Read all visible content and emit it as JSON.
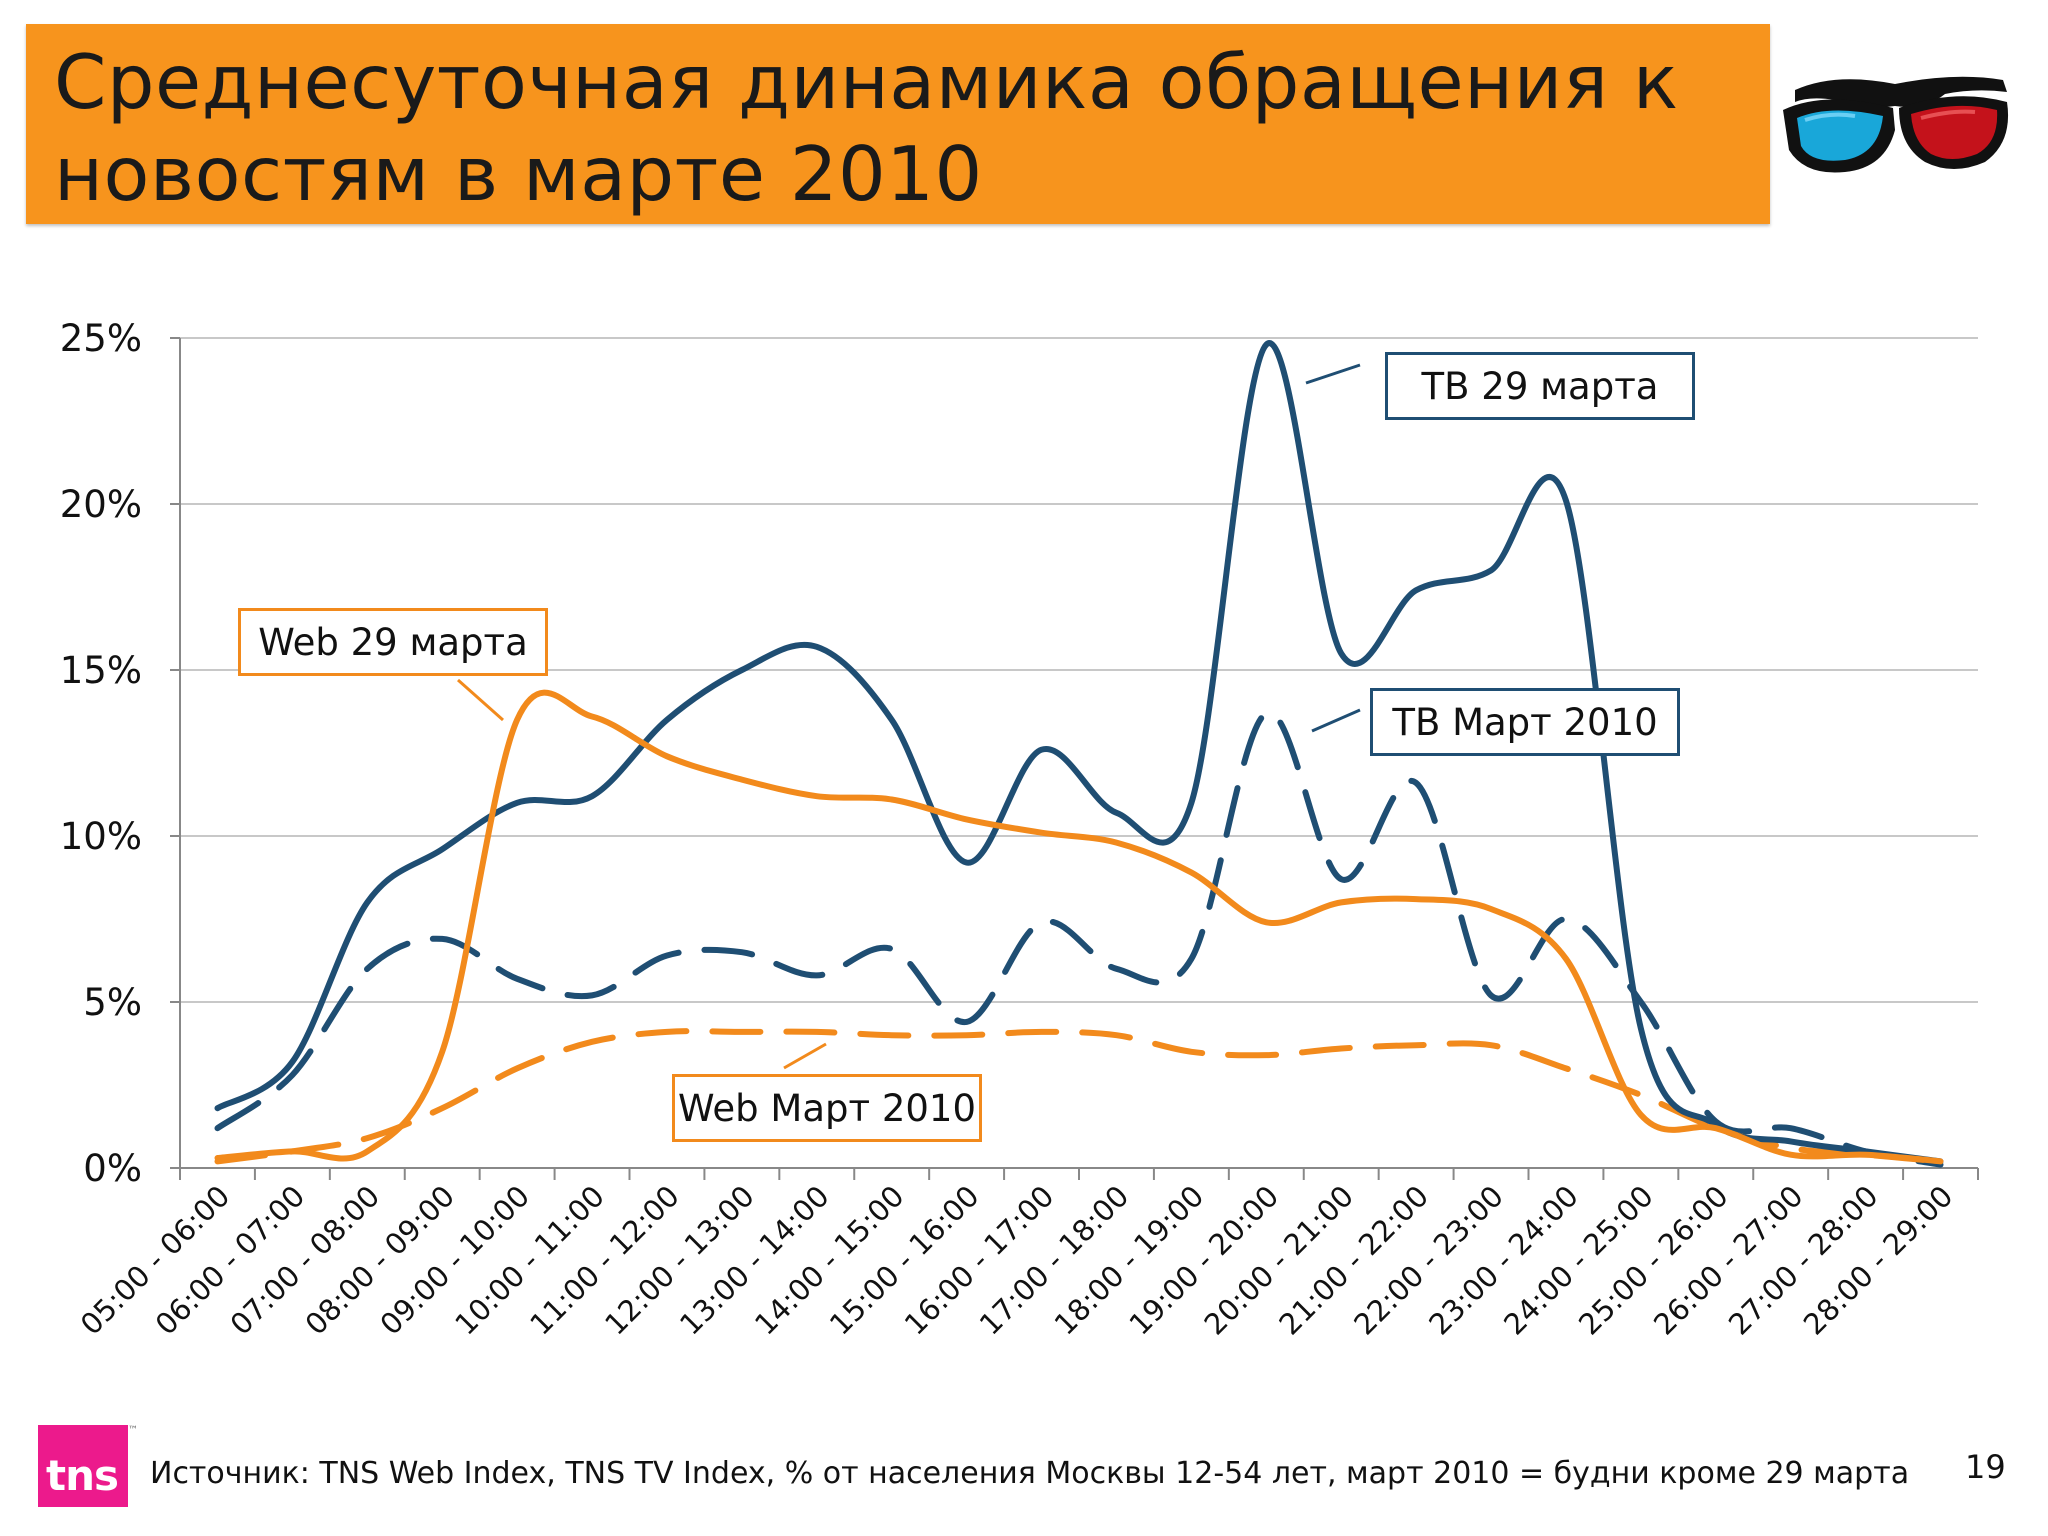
{
  "header": {
    "title": "Среднесуточная динамика обращения к новостям в марте 2010"
  },
  "footer": {
    "logo_text": "tns",
    "trademark": "™",
    "source": "Источник: TNS Web Index, TNS TV Index, % от населения Москвы 12-54 лет, март 2010 = будни кроме 29 марта",
    "page_number": "19"
  },
  "colors": {
    "title_bar": "#f7941d",
    "tv": "#1f4e73",
    "web": "#f28a1c",
    "logo": "#ec1a8c"
  },
  "chart_data": {
    "type": "line",
    "categories": [
      "05:00 - 06:00",
      "06:00 - 07:00",
      "07:00 - 08:00",
      "08:00 - 09:00",
      "09:00 - 10:00",
      "10:00 - 11:00",
      "11:00 - 12:00",
      "12:00 - 13:00",
      "13:00 - 14:00",
      "14:00 - 15:00",
      "15:00 - 16:00",
      "16:00 - 17:00",
      "17:00 - 18:00",
      "18:00 - 19:00",
      "19:00 - 20:00",
      "20:00 - 21:00",
      "21:00 - 22:00",
      "22:00 - 23:00",
      "23:00 - 24:00",
      "24:00 - 25:00",
      "25:00 - 26:00",
      "26:00 - 27:00",
      "27:00 - 28:00",
      "28:00 - 29:00"
    ],
    "y_ticks": [
      "0%",
      "5%",
      "10%",
      "15%",
      "20%",
      "25%"
    ],
    "ylim": [
      0,
      25
    ],
    "grid": true,
    "series": [
      {
        "name": "ТВ 29 марта",
        "style": "solid",
        "color": "#1f4e73",
        "values": [
          1.8,
          3.2,
          8.0,
          9.6,
          11.0,
          11.2,
          13.5,
          15.0,
          15.7,
          13.5,
          9.2,
          12.6,
          10.7,
          11.0,
          24.8,
          15.5,
          17.4,
          18.0,
          20.1,
          4.2,
          1.3,
          0.8,
          0.5,
          0.2
        ]
      },
      {
        "name": "ТВ Март 2010",
        "style": "dashed",
        "color": "#1f4e73",
        "values": [
          1.2,
          2.8,
          6.0,
          6.9,
          5.7,
          5.2,
          6.4,
          6.5,
          5.8,
          6.6,
          4.4,
          7.4,
          6.0,
          6.3,
          13.7,
          8.7,
          11.6,
          5.2,
          7.5,
          5.0,
          1.4,
          1.2,
          0.5,
          0.1
        ]
      },
      {
        "name": "Web 29 марта",
        "style": "solid",
        "color": "#f28a1c",
        "values": [
          0.3,
          0.5,
          0.5,
          3.5,
          13.5,
          13.6,
          12.4,
          11.7,
          11.2,
          11.1,
          10.5,
          10.1,
          9.8,
          8.9,
          7.4,
          8.0,
          8.1,
          7.8,
          6.3,
          1.6,
          1.2,
          0.4,
          0.4,
          0.2
        ]
      },
      {
        "name": "Web Март 2010",
        "style": "dashed",
        "color": "#f28a1c",
        "values": [
          0.2,
          0.5,
          0.9,
          1.8,
          3.0,
          3.8,
          4.1,
          4.1,
          4.1,
          4.0,
          4.0,
          4.1,
          4.0,
          3.5,
          3.4,
          3.6,
          3.7,
          3.7,
          3.0,
          2.2,
          1.2,
          0.6,
          0.4,
          0.2
        ]
      }
    ],
    "annotations": [
      {
        "label": "ТВ 29 марта",
        "series": 0
      },
      {
        "label": "ТВ Март 2010",
        "series": 1
      },
      {
        "label": "Web 29 марта",
        "series": 2
      },
      {
        "label": "Web Март 2010",
        "series": 3
      }
    ]
  }
}
